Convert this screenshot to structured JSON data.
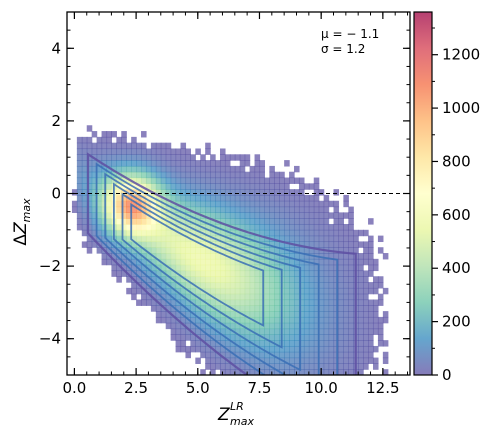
{
  "chart_data": {
    "type": "heatmap",
    "title": "",
    "xlabel_main": "Z",
    "xlabel_sup": "LR",
    "xlabel_sub": "max",
    "ylabel_prefix": "Δ",
    "ylabel_main": "Z",
    "ylabel_sub": "max",
    "xlim": [
      -0.3,
      13.6
    ],
    "ylim": [
      -5.0,
      5.0
    ],
    "xticks": [
      0.0,
      2.5,
      5.0,
      7.5,
      10.0,
      12.5
    ],
    "xtick_labels": [
      "0.0",
      "2.5",
      "5.0",
      "7.5",
      "10.0",
      "12.5"
    ],
    "yticks": [
      -4,
      -2,
      0,
      2,
      4
    ],
    "ytick_labels": [
      "−4",
      "−2",
      "0",
      "2",
      "4"
    ],
    "reference_line": {
      "y": 0,
      "style": "dashed"
    },
    "annotations": [
      "μ = − 1.1",
      "σ = 1.2"
    ],
    "colorbar": {
      "colormap": "Spectral_r",
      "range": [
        0,
        1360
      ],
      "ticks": [
        0,
        200,
        400,
        600,
        800,
        1000,
        1200
      ],
      "tick_labels": [
        "0",
        "200",
        "400",
        "600",
        "800",
        "1000",
        "1200"
      ]
    },
    "density_peak": {
      "x": 2.3,
      "y": -0.3,
      "value": 1360
    },
    "contour_levels": 6,
    "contour_color": "#3a6fb5",
    "grid": false
  }
}
